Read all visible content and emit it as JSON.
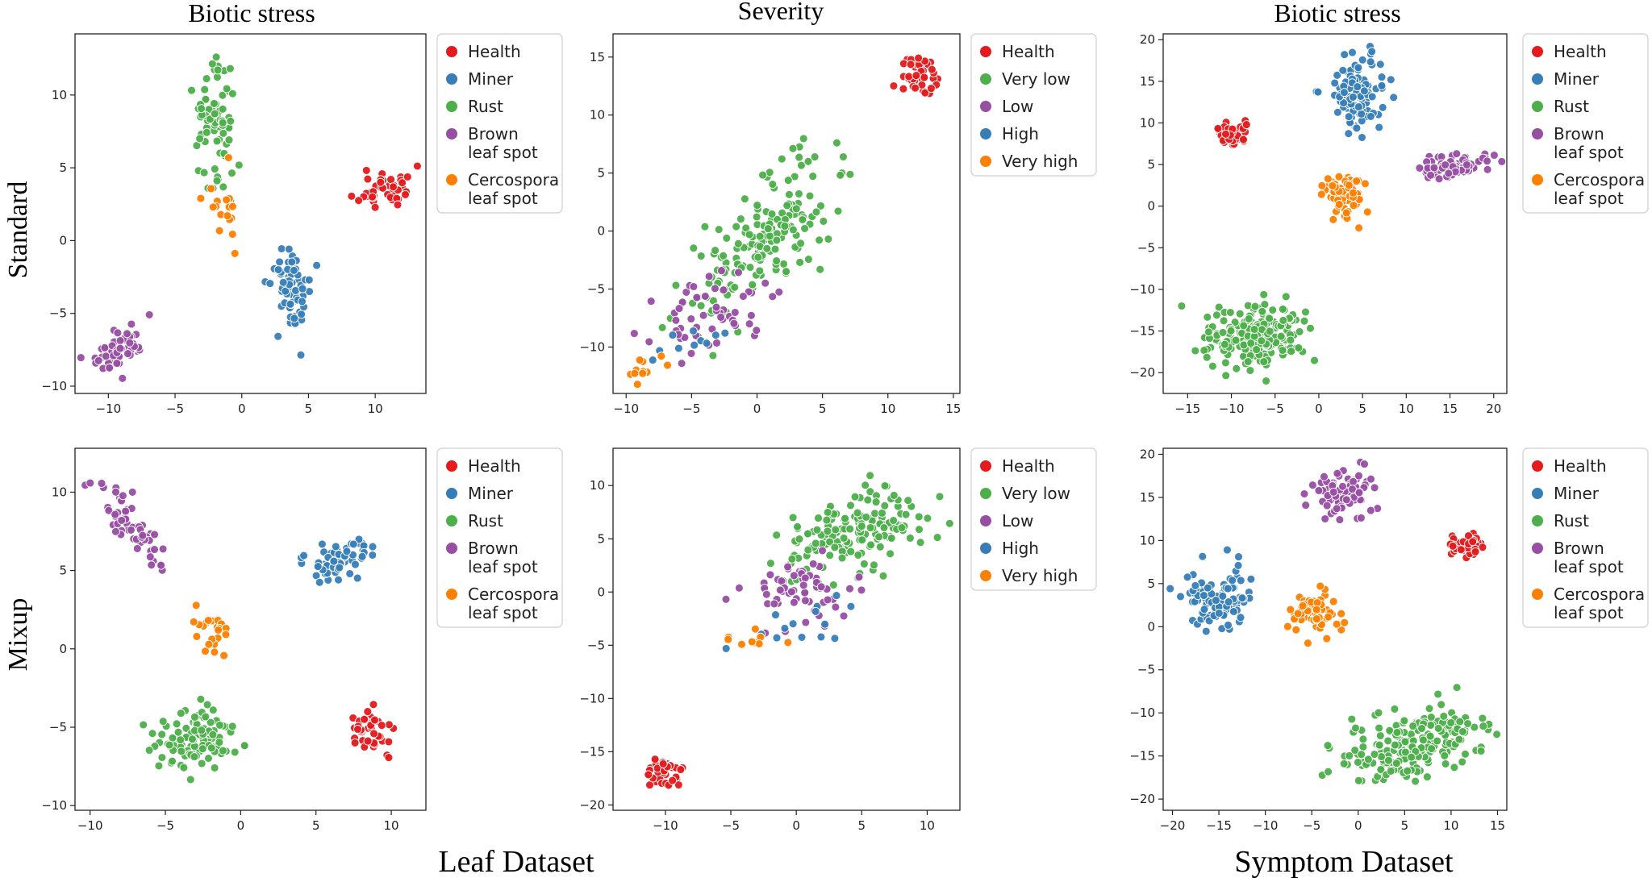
{
  "figure": {
    "row_labels": [
      "Standard",
      "Mixup"
    ],
    "column_titles": [
      "Biotic stress",
      "Severity",
      "Biotic stress"
    ],
    "dataset_labels": [
      "Leaf Dataset",
      "Symptom Dataset"
    ],
    "colors": {
      "red": "#e41a1c",
      "blue": "#377eb8",
      "green": "#4daf4a",
      "purple": "#984ea3",
      "orange": "#ff7f00"
    }
  },
  "legends": {
    "biotic": [
      {
        "lines": [
          "Health"
        ],
        "color": "#e41a1c"
      },
      {
        "lines": [
          "Miner"
        ],
        "color": "#377eb8"
      },
      {
        "lines": [
          "Rust"
        ],
        "color": "#4daf4a"
      },
      {
        "lines": [
          "Brown",
          "leaf spot"
        ],
        "color": "#984ea3"
      },
      {
        "lines": [
          "Cercospora",
          "leaf spot"
        ],
        "color": "#ff7f00"
      }
    ],
    "severity": [
      {
        "lines": [
          "Health"
        ],
        "color": "#e41a1c"
      },
      {
        "lines": [
          "Very low"
        ],
        "color": "#4daf4a"
      },
      {
        "lines": [
          "Low"
        ],
        "color": "#984ea3"
      },
      {
        "lines": [
          "High"
        ],
        "color": "#377eb8"
      },
      {
        "lines": [
          "Very high"
        ],
        "color": "#ff7f00"
      }
    ]
  },
  "chart_data": [
    {
      "id": "standard-leaf-biotic",
      "type": "scatter",
      "title": "Biotic stress",
      "legend": "biotic",
      "xlim": [
        -12.5,
        13.8
      ],
      "ylim": [
        -10.5,
        14.2
      ],
      "xticks": [
        -10,
        -5,
        0,
        5,
        10
      ],
      "yticks": [
        -10,
        -5,
        0,
        5,
        10
      ],
      "clusters": [
        {
          "name": "Health",
          "color": "#e41a1c",
          "n": 45,
          "cx": 10.8,
          "cy": 3.6,
          "sx": 1.2,
          "sy": 0.9,
          "seed": 11
        },
        {
          "name": "Miner",
          "color": "#377eb8",
          "n": 65,
          "cx": 3.9,
          "cy": -3.4,
          "sx": 0.95,
          "sy": 1.7,
          "seed": 12
        },
        {
          "name": "Rust",
          "color": "#4daf4a",
          "n": 80,
          "cx": -2.0,
          "cy": 8.0,
          "sx": 0.9,
          "sy": 2.6,
          "seed": 13
        },
        {
          "name": "Brown leaf spot",
          "color": "#984ea3",
          "n": 55,
          "cx": -8.8,
          "cy": -7.2,
          "sx": 1.6,
          "sy": 1.2,
          "rho": 0.75,
          "seed": 14
        },
        {
          "name": "Cercospora leaf spot",
          "color": "#ff7f00",
          "n": 18,
          "cx": -1.2,
          "cy": 2.2,
          "sx": 0.7,
          "sy": 1.6,
          "seed": 15
        }
      ]
    },
    {
      "id": "standard-leaf-severity",
      "type": "scatter",
      "title": "Severity",
      "legend": "severity",
      "xlim": [
        -11.0,
        15.5
      ],
      "ylim": [
        -14.0,
        17.0
      ],
      "xticks": [
        -10,
        -5,
        0,
        5,
        10,
        15
      ],
      "yticks": [
        -10,
        -5,
        0,
        5,
        10,
        15
      ],
      "clusters": [
        {
          "name": "Health",
          "color": "#e41a1c",
          "n": 40,
          "cx": 12.6,
          "cy": 13.3,
          "sx": 1.0,
          "sy": 1.0,
          "seed": 21
        },
        {
          "name": "Very low",
          "color": "#4daf4a",
          "n": 170,
          "cx": 0.6,
          "cy": -0.6,
          "sx": 3.1,
          "sy": 3.9,
          "rho": 0.7,
          "seed": 22
        },
        {
          "name": "Low",
          "color": "#984ea3",
          "n": 55,
          "cx": -3.4,
          "cy": -7.2,
          "sx": 2.6,
          "sy": 1.8,
          "rho": 0.3,
          "seed": 23
        },
        {
          "name": "High",
          "color": "#377eb8",
          "n": 10,
          "cx": -5.5,
          "cy": -9.8,
          "sx": 1.8,
          "sy": 1.0,
          "seed": 24
        },
        {
          "name": "Very high",
          "color": "#ff7f00",
          "n": 12,
          "cx": -8.3,
          "cy": -12.2,
          "sx": 1.0,
          "sy": 0.6,
          "seed": 25
        }
      ]
    },
    {
      "id": "standard-symptom-biotic",
      "type": "scatter",
      "title": "Biotic stress",
      "legend": "biotic",
      "xlim": [
        -17.8,
        21.5
      ],
      "ylim": [
        -22.5,
        20.7
      ],
      "xticks": [
        -15,
        -10,
        -5,
        0,
        5,
        10,
        15,
        20
      ],
      "yticks": [
        -20,
        -15,
        -10,
        -5,
        0,
        5,
        10,
        15,
        20
      ],
      "clusters": [
        {
          "name": "Health",
          "color": "#e41a1c",
          "n": 45,
          "cx": -10.2,
          "cy": 8.6,
          "sx": 1.3,
          "sy": 0.8,
          "seed": 31
        },
        {
          "name": "Miner",
          "color": "#377eb8",
          "n": 110,
          "cx": 4.2,
          "cy": 13.8,
          "sx": 1.9,
          "sy": 2.7,
          "seed": 32
        },
        {
          "name": "Rust",
          "color": "#4daf4a",
          "n": 200,
          "cx": -7.2,
          "cy": -15.5,
          "sx": 3.4,
          "sy": 2.1,
          "seed": 33
        },
        {
          "name": "Brown leaf spot",
          "color": "#984ea3",
          "n": 80,
          "cx": 15.2,
          "cy": 4.8,
          "sx": 2.8,
          "sy": 0.9,
          "rho": 0.3,
          "seed": 34
        },
        {
          "name": "Cercospora leaf spot",
          "color": "#ff7f00",
          "n": 75,
          "cx": 3.0,
          "cy": 1.4,
          "sx": 1.5,
          "sy": 1.6,
          "seed": 35
        }
      ]
    },
    {
      "id": "mixup-leaf-biotic",
      "type": "scatter",
      "title": "",
      "legend": "biotic",
      "xlim": [
        -11.0,
        12.3
      ],
      "ylim": [
        -10.3,
        12.8
      ],
      "xticks": [
        -10,
        -5,
        0,
        5,
        10
      ],
      "yticks": [
        -10,
        -5,
        0,
        5,
        10
      ],
      "clusters": [
        {
          "name": "Health",
          "color": "#e41a1c",
          "n": 45,
          "cx": 8.8,
          "cy": -5.2,
          "sx": 0.95,
          "sy": 0.8,
          "seed": 41
        },
        {
          "name": "Miner",
          "color": "#377eb8",
          "n": 60,
          "cx": 6.2,
          "cy": 5.7,
          "sx": 1.6,
          "sy": 0.8,
          "rho": 0.5,
          "seed": 42
        },
        {
          "name": "Rust",
          "color": "#4daf4a",
          "n": 105,
          "cx": -3.0,
          "cy": -5.6,
          "sx": 1.8,
          "sy": 1.2,
          "seed": 43
        },
        {
          "name": "Brown leaf spot",
          "color": "#984ea3",
          "n": 60,
          "cx": -7.3,
          "cy": 7.8,
          "sx": 1.4,
          "sy": 1.9,
          "rho": -0.8,
          "seed": 44
        },
        {
          "name": "Cercospora leaf spot",
          "color": "#ff7f00",
          "n": 22,
          "cx": -2.2,
          "cy": 1.2,
          "sx": 0.8,
          "sy": 1.0,
          "seed": 45
        }
      ]
    },
    {
      "id": "mixup-leaf-severity",
      "type": "scatter",
      "title": "",
      "legend": "severity",
      "xlim": [
        -14.0,
        12.5
      ],
      "ylim": [
        -20.5,
        13.5
      ],
      "xticks": [
        -10,
        -5,
        0,
        5,
        10
      ],
      "yticks": [
        -20,
        -15,
        -10,
        -5,
        0,
        5,
        10
      ],
      "clusters": [
        {
          "name": "Health",
          "color": "#e41a1c",
          "n": 40,
          "cx": -10.3,
          "cy": -17.0,
          "sx": 1.0,
          "sy": 0.9,
          "seed": 51
        },
        {
          "name": "Very low",
          "color": "#4daf4a",
          "n": 160,
          "cx": 4.5,
          "cy": 5.6,
          "sx": 3.0,
          "sy": 2.7,
          "rho": 0.45,
          "seed": 52
        },
        {
          "name": "Low",
          "color": "#984ea3",
          "n": 60,
          "cx": 0.5,
          "cy": 0.2,
          "sx": 2.6,
          "sy": 2.0,
          "seed": 53
        },
        {
          "name": "High",
          "color": "#377eb8",
          "n": 14,
          "cx": 0.0,
          "cy": -2.5,
          "sx": 3.5,
          "sy": 1.8,
          "seed": 54
        },
        {
          "name": "Very high",
          "color": "#ff7f00",
          "n": 10,
          "cx": -3.0,
          "cy": -4.5,
          "sx": 2.3,
          "sy": 0.5,
          "seed": 55
        }
      ]
    },
    {
      "id": "mixup-symptom-biotic",
      "type": "scatter",
      "title": "",
      "legend": "biotic",
      "xlim": [
        -21.0,
        16.0
      ],
      "ylim": [
        -21.3,
        20.7
      ],
      "xticks": [
        -20,
        -15,
        -10,
        -5,
        0,
        5,
        10,
        15
      ],
      "yticks": [
        -20,
        -15,
        -10,
        -5,
        0,
        5,
        10,
        15,
        20
      ],
      "clusters": [
        {
          "name": "Health",
          "color": "#e41a1c",
          "n": 45,
          "cx": 11.5,
          "cy": 9.4,
          "sx": 1.2,
          "sy": 0.9,
          "seed": 61
        },
        {
          "name": "Miner",
          "color": "#377eb8",
          "n": 100,
          "cx": -15.2,
          "cy": 3.2,
          "sx": 1.9,
          "sy": 1.9,
          "seed": 62
        },
        {
          "name": "Rust",
          "color": "#4daf4a",
          "n": 220,
          "cx": 5.8,
          "cy": -13.8,
          "sx": 4.1,
          "sy": 2.4,
          "rho": 0.35,
          "seed": 63
        },
        {
          "name": "Brown leaf spot",
          "color": "#984ea3",
          "n": 80,
          "cx": -1.5,
          "cy": 15.5,
          "sx": 2.0,
          "sy": 1.7,
          "seed": 64
        },
        {
          "name": "Cercospora leaf spot",
          "color": "#ff7f00",
          "n": 75,
          "cx": -4.6,
          "cy": 1.6,
          "sx": 1.6,
          "sy": 1.8,
          "seed": 65
        }
      ]
    }
  ]
}
